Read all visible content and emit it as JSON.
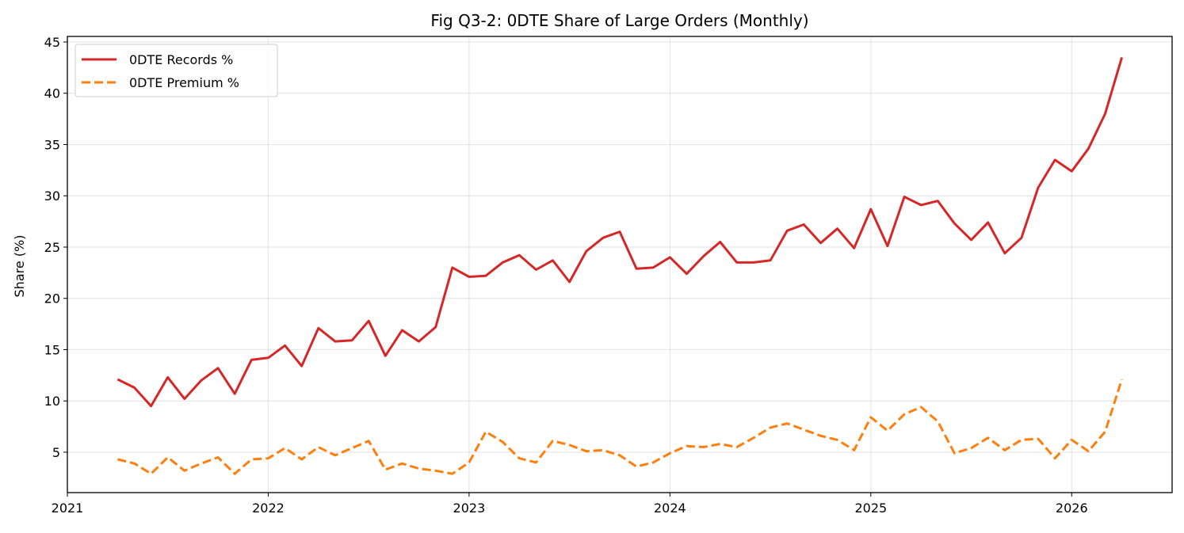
{
  "chart_data": {
    "type": "line",
    "title": "Fig Q3-2: 0DTE Share of Large Orders (Monthly)",
    "xlabel": "",
    "ylabel": "Share (%)",
    "xlim": [
      "2021-01",
      "2026-07"
    ],
    "ylim": [
      1.06,
      45.54
    ],
    "grid": true,
    "legend_position": "top-left",
    "x_ticks": [
      "2021",
      "2022",
      "2023",
      "2024",
      "2025",
      "2026"
    ],
    "y_ticks": [
      5,
      10,
      15,
      20,
      25,
      30,
      35,
      40,
      45
    ],
    "x": [
      "2021-04",
      "2021-05",
      "2021-06",
      "2021-07",
      "2021-08",
      "2021-09",
      "2021-10",
      "2021-11",
      "2021-12",
      "2022-01",
      "2022-02",
      "2022-03",
      "2022-04",
      "2022-05",
      "2022-06",
      "2022-07",
      "2022-08",
      "2022-09",
      "2022-10",
      "2022-11",
      "2022-12",
      "2023-01",
      "2023-02",
      "2023-03",
      "2023-04",
      "2023-05",
      "2023-06",
      "2023-07",
      "2023-08",
      "2023-09",
      "2023-10",
      "2023-11",
      "2023-12",
      "2024-01",
      "2024-02",
      "2024-03",
      "2024-04",
      "2024-05",
      "2024-06",
      "2024-07",
      "2024-08",
      "2024-09",
      "2024-10",
      "2024-11",
      "2024-12",
      "2025-01",
      "2025-02",
      "2025-03",
      "2025-04",
      "2025-05",
      "2025-06",
      "2025-07",
      "2025-08",
      "2025-09",
      "2025-10",
      "2025-11",
      "2025-12",
      "2026-01",
      "2026-02",
      "2026-03",
      "2026-04"
    ],
    "series": [
      {
        "name": "0DTE Records %",
        "color": "#d62728",
        "style": "solid",
        "values": [
          12.1,
          11.3,
          9.5,
          12.3,
          10.2,
          12.0,
          13.2,
          10.7,
          14.0,
          14.2,
          15.4,
          13.4,
          17.1,
          15.8,
          15.9,
          17.8,
          14.4,
          16.9,
          15.8,
          17.2,
          23.0,
          22.1,
          22.2,
          23.5,
          24.2,
          22.8,
          23.7,
          21.6,
          24.6,
          25.9,
          26.5,
          22.9,
          23.0,
          24.0,
          22.4,
          24.1,
          25.5,
          23.5,
          23.5,
          23.7,
          26.6,
          27.2,
          25.4,
          26.8,
          24.9,
          28.7,
          25.1,
          29.9,
          29.1,
          29.5,
          27.3,
          25.7,
          27.4,
          24.4,
          25.9,
          30.8,
          33.5,
          32.4,
          34.6,
          38.0,
          43.5
        ]
      },
      {
        "name": "0DTE Premium %",
        "color": "#ff7f0e",
        "style": "dashed",
        "values": [
          4.3,
          3.9,
          2.9,
          4.5,
          3.2,
          3.9,
          4.5,
          2.9,
          4.3,
          4.4,
          5.4,
          4.3,
          5.5,
          4.7,
          5.4,
          6.1,
          3.3,
          3.9,
          3.4,
          3.2,
          2.9,
          4.0,
          7.0,
          6.0,
          4.4,
          4.0,
          6.1,
          5.7,
          5.1,
          5.2,
          4.7,
          3.6,
          4.0,
          4.9,
          5.6,
          5.5,
          5.8,
          5.5,
          6.4,
          7.4,
          7.8,
          7.2,
          6.6,
          6.2,
          5.2,
          8.4,
          7.1,
          8.7,
          9.4,
          8.0,
          4.9,
          5.4,
          6.4,
          5.2,
          6.2,
          6.3,
          4.4,
          6.2,
          5.1,
          7.0,
          12.1
        ]
      }
    ]
  }
}
